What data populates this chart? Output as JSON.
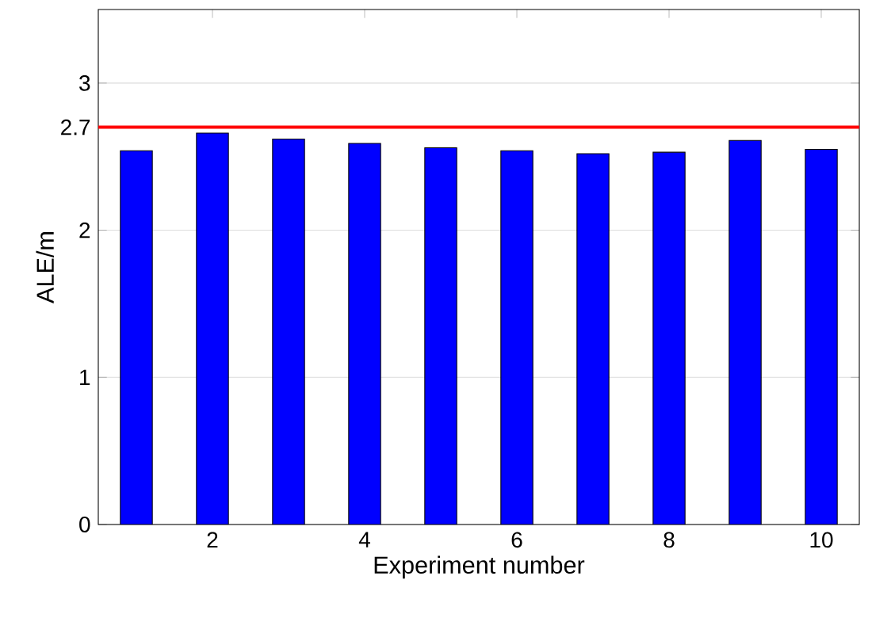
{
  "chart_data": {
    "type": "bar",
    "xlabel": "Experiment number",
    "ylabel": "ALE/m",
    "x": [
      1,
      2,
      3,
      4,
      5,
      6,
      7,
      8,
      9,
      10
    ],
    "values": [
      2.54,
      2.66,
      2.62,
      2.59,
      2.56,
      2.54,
      2.52,
      2.53,
      2.61,
      2.55
    ],
    "color": "#0000ff",
    "xlim": [
      0.5,
      10.5
    ],
    "xticks": [
      2,
      4,
      6,
      8,
      10
    ],
    "ylim": [
      0,
      3.5
    ],
    "yticks": [
      0,
      1,
      2,
      2.7,
      3
    ],
    "grid": "y",
    "ref_lines": [
      {
        "axis": "y",
        "value": 2.7,
        "color": "#ff0000"
      }
    ]
  }
}
